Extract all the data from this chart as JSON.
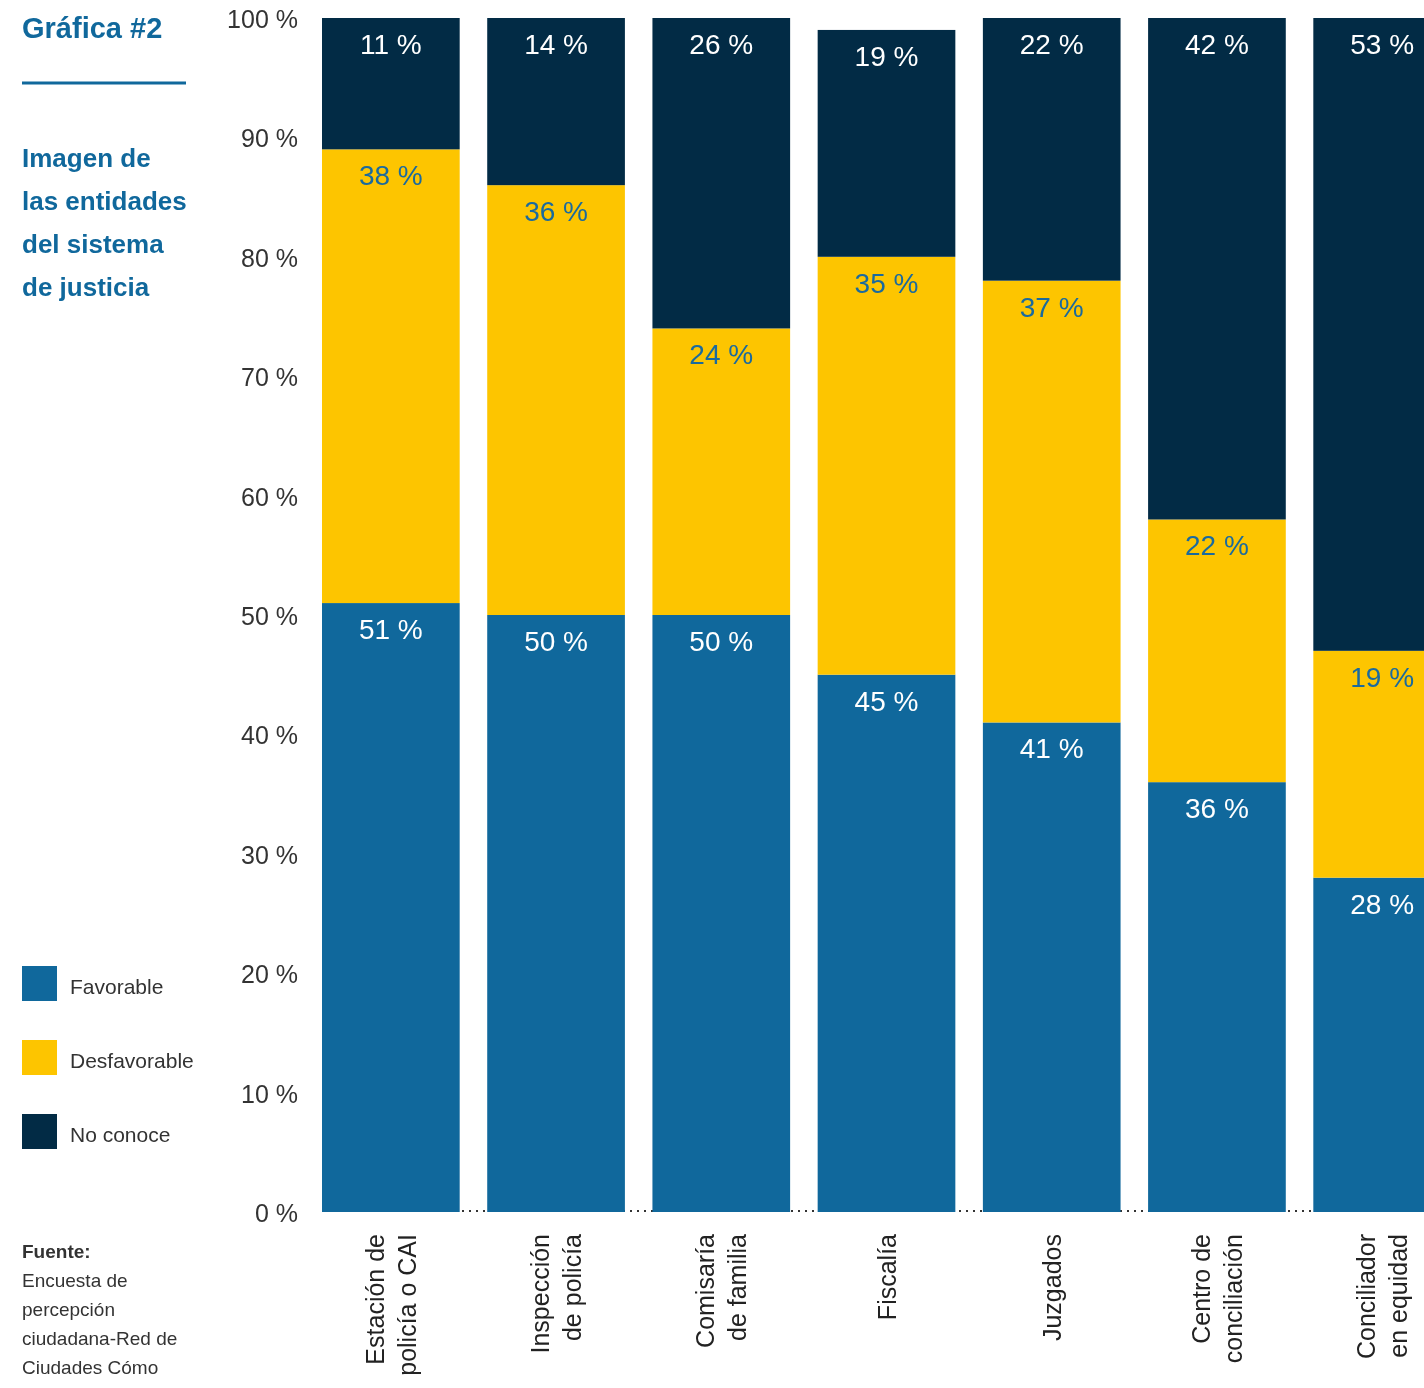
{
  "chart_data": {
    "type": "bar",
    "stacked": true,
    "title": "Gráfica #2",
    "subtitle": "Imagen de las entidades del sistema de justicia",
    "categories": [
      "Estación de policía o CAI",
      "Inspección de policía",
      "Comisaría de familia",
      "Fiscalía",
      "Juzgados",
      "Centro de conciliación",
      "Conciliador en equidad"
    ],
    "series": [
      {
        "name": "Favorable",
        "color": "#10689c",
        "values": [
          51,
          50,
          50,
          45,
          41,
          36,
          28
        ],
        "value_labels": [
          "51 %",
          "50 %",
          "50 %",
          "45 %",
          "41 %",
          "36 %",
          "28 %"
        ]
      },
      {
        "name": "Desfavorable",
        "color": "#fdc500",
        "values": [
          38,
          36,
          24,
          35,
          37,
          22,
          19
        ],
        "value_labels": [
          "38 %",
          "36 %",
          "24 %",
          "35 %",
          "37 %",
          "22 %",
          "19 %"
        ]
      },
      {
        "name": "No conoce",
        "color": "#022b45",
        "values": [
          11,
          14,
          26,
          19,
          22,
          42,
          53
        ],
        "value_labels": [
          "11 %",
          "14 %",
          "26 %",
          "19 %",
          "22 %",
          "42 %",
          "53 %"
        ]
      }
    ],
    "ylim": [
      0,
      100
    ],
    "yticks": [
      {
        "value": 0,
        "label": "0 %"
      },
      {
        "value": 10,
        "label": "10 %"
      },
      {
        "value": 20,
        "label": "20 %"
      },
      {
        "value": 30,
        "label": "30 %"
      },
      {
        "value": 40,
        "label": "40 %"
      },
      {
        "value": 50,
        "label": "50 %"
      },
      {
        "value": 60,
        "label": "60 %"
      },
      {
        "value": 70,
        "label": "70 %"
      },
      {
        "value": 80,
        "label": "80 %"
      },
      {
        "value": 90,
        "label": "90 %"
      },
      {
        "value": 100,
        "label": "100 %"
      }
    ],
    "grid": false,
    "legend": "bottom left",
    "annotations": [
      "Fuente:",
      "Encuesta de percepción ciudadana-Red de Ciudades Cómo"
    ]
  }
}
